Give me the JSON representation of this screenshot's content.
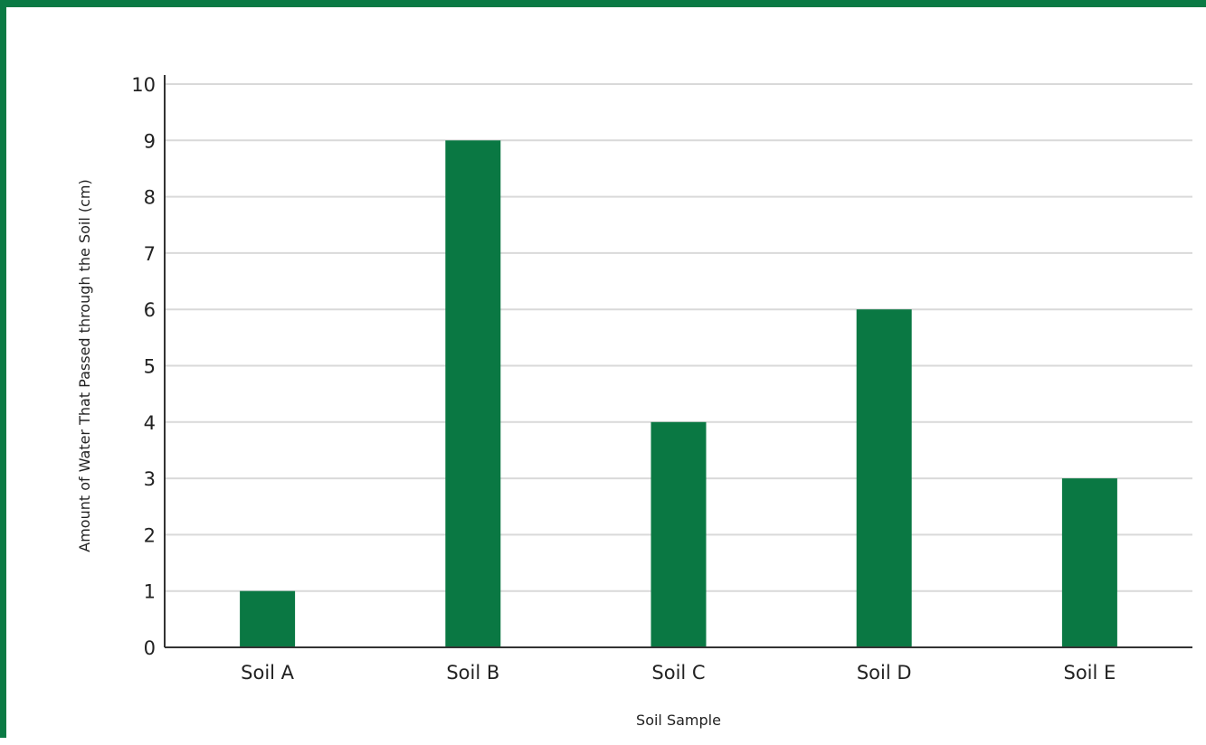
{
  "chart_data": {
    "type": "bar",
    "title": "",
    "xlabel": "Soil Sample",
    "ylabel": "Amount of Water That Passed through the Soil (cm)",
    "categories": [
      "Soil A",
      "Soil B",
      "Soil C",
      "Soil D",
      "Soil E"
    ],
    "values": [
      1,
      9,
      4,
      6,
      3
    ],
    "ylim": [
      0,
      10
    ],
    "yticks": [
      "0",
      "1",
      "2",
      "3",
      "4",
      "5",
      "6",
      "7",
      "8",
      "9",
      "10"
    ],
    "grid": true,
    "legend": "none",
    "colors": {
      "bar": "#0a7843",
      "frame": "#0a7a44",
      "grid": "#d9d9d9",
      "axis": "#333333"
    }
  }
}
